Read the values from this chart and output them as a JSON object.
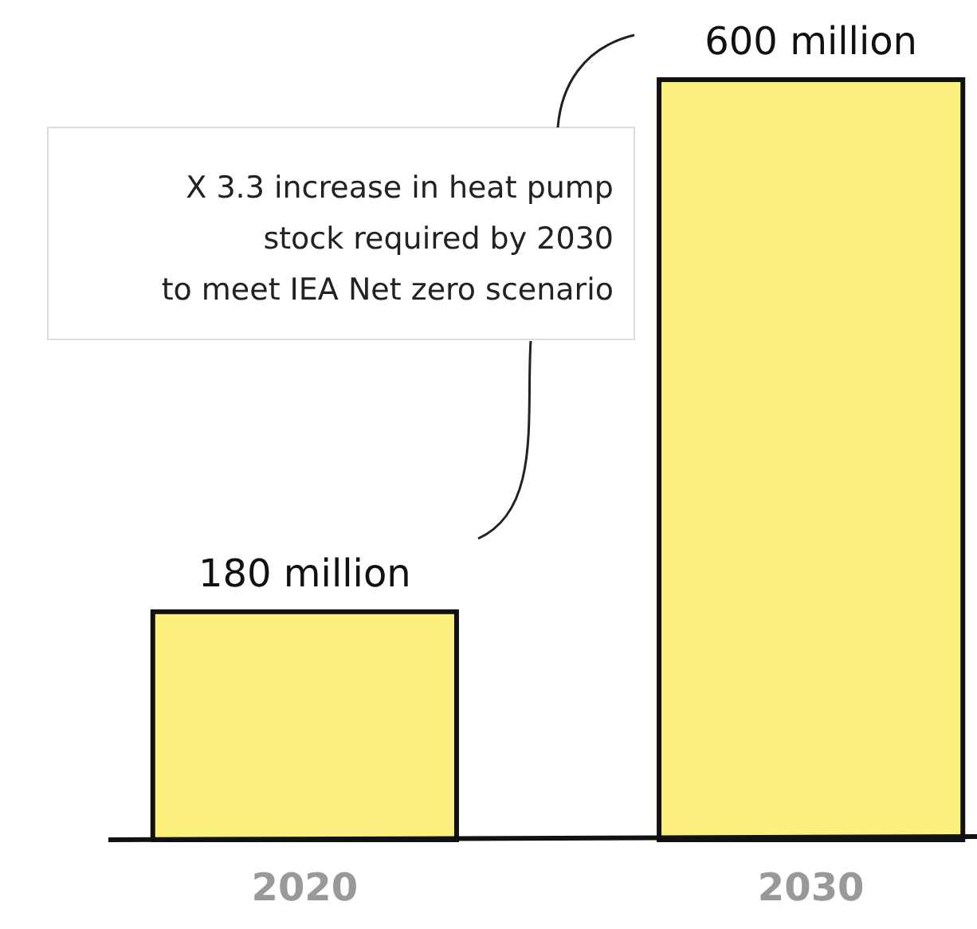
{
  "chart_data": {
    "type": "bar",
    "categories": [
      "2020",
      "2030"
    ],
    "values": [
      180,
      600
    ],
    "value_labels": [
      "180 million",
      "600 million"
    ],
    "color": "#fcf07f",
    "ylim": [
      0,
      600
    ],
    "tick_labels": "x",
    "annotations": [
      "X 3.3 increase in heat pump\nstock required by 2030\nto meet IEA Net zero scenario"
    ]
  }
}
